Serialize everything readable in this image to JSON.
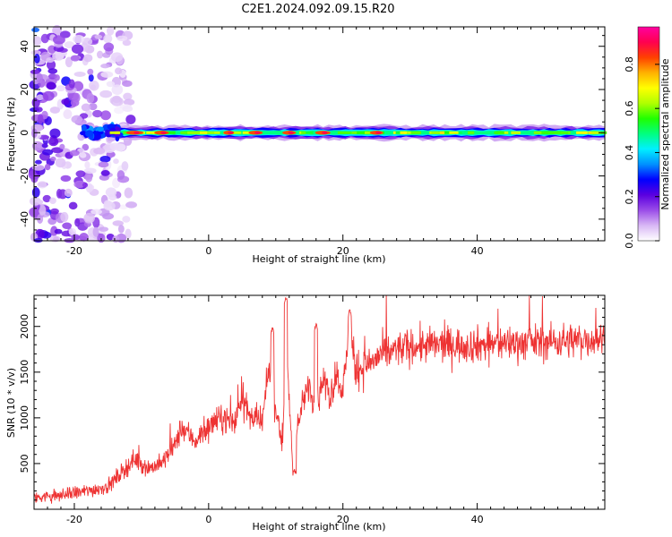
{
  "title": "C2E1.2024.092.09.15.R20",
  "chart_data": [
    {
      "type": "heatmap",
      "name": "spectrogram",
      "xlabel": "Height of straight line (km)",
      "ylabel": "Frequency (Hz)",
      "xlim": [
        -26,
        59
      ],
      "ylim": [
        -50,
        49
      ],
      "x_ticks": [
        -20,
        0,
        20,
        40
      ],
      "y_ticks": [
        -40,
        -20,
        0,
        20,
        40
      ],
      "x_minor_step": 2,
      "y_minor_step": 5,
      "colorbar": {
        "label": "Normalized spectral amplitude",
        "range": [
          0,
          0.97
        ],
        "ticks": [
          "0.0",
          "0.2",
          "0.4",
          "0.6",
          "0.8"
        ],
        "tick_values": [
          0,
          0.2,
          0.4,
          0.6,
          0.8
        ],
        "colormap": [
          "#ffffff",
          "#d9b8f5",
          "#9a4ce8",
          "#5b00e0",
          "#0000ff",
          "#0090ff",
          "#00f0ff",
          "#00ff80",
          "#20ff00",
          "#b0ff00",
          "#ffff00",
          "#ffb000",
          "#ff4000",
          "#ff0050",
          "#ff00a0"
        ]
      },
      "ridge": {
        "frequency_hz": 0,
        "from_km": -15,
        "to_km": 59,
        "hot_spots_km": [
          -11,
          -7,
          3,
          7,
          12,
          17,
          25
        ]
      },
      "noise_region_km": [
        -26,
        -14
      ]
    },
    {
      "type": "line",
      "name": "snr",
      "xlabel": "Height of straight line (km)",
      "ylabel": "SNR (10 * v/v)",
      "xlim": [
        -26,
        59
      ],
      "ylim": [
        0,
        2340
      ],
      "x_ticks": [
        -20,
        0,
        20,
        40
      ],
      "y_ticks": [
        500,
        1000,
        1500,
        2000
      ],
      "x_minor_step": 2,
      "y_minor_step": 100,
      "line_color": "#ee3333",
      "control_points": {
        "x": [
          -26,
          -22,
          -18,
          -15,
          -13,
          -11,
          -9,
          -7,
          -5,
          -4,
          -2,
          0,
          2,
          4,
          5,
          6,
          8,
          9,
          10,
          11,
          11.5,
          12,
          12.5,
          13,
          14,
          15,
          16,
          17,
          18,
          19,
          20,
          21,
          22,
          24,
          26,
          28,
          30,
          35,
          40,
          45,
          50,
          55,
          59
        ],
        "y": [
          130,
          150,
          200,
          250,
          400,
          550,
          450,
          500,
          700,
          900,
          750,
          900,
          1000,
          950,
          1300,
          1000,
          950,
          1550,
          1100,
          700,
          1800,
          1200,
          500,
          800,
          1150,
          1350,
          1050,
          1450,
          1200,
          1500,
          1300,
          1900,
          1500,
          1600,
          1700,
          1750,
          1780,
          1800,
          1800,
          1820,
          1830,
          1850,
          1870
        ]
      },
      "peaks": [
        {
          "x": 11.5,
          "y": 2320
        },
        {
          "x": 21,
          "y": 2180
        },
        {
          "x": 9.5,
          "y": 1990
        },
        {
          "x": 16,
          "y": 2050
        },
        {
          "x": 12.8,
          "y": 450
        }
      ]
    }
  ]
}
